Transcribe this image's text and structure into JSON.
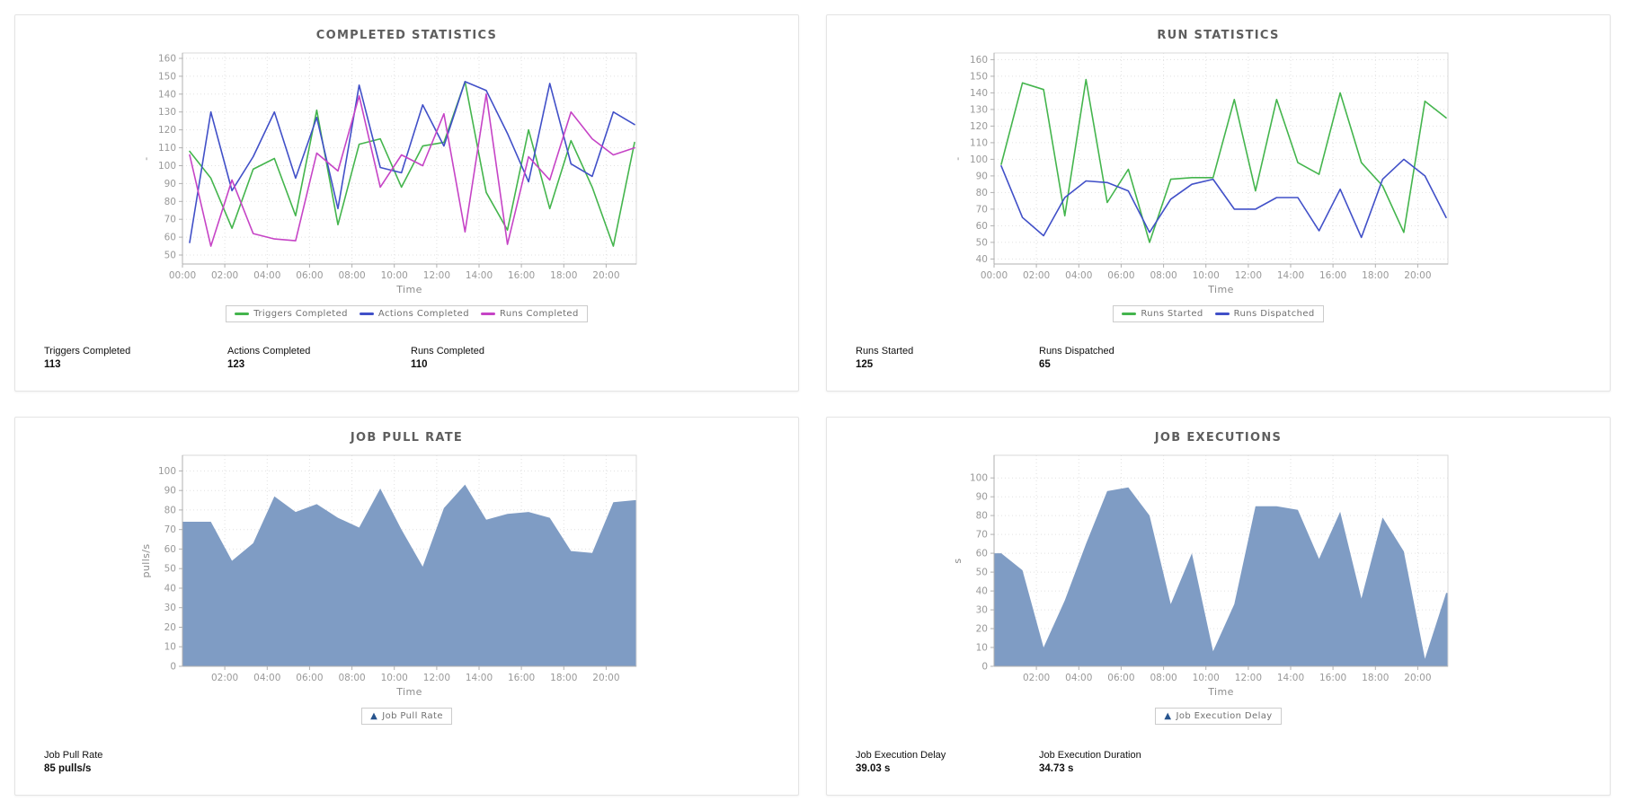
{
  "colors": {
    "green": "#44b54d",
    "blue": "#4150c8",
    "magenta": "#c644c6",
    "area_fill": "#7f9cc4",
    "legend_marker": "#27548d",
    "grid": "#e1e1e1",
    "axis": "#b0b0b0",
    "plot_border": "#d9d9d9"
  },
  "panels": [
    {
      "title": "COMPLETED STATISTICS",
      "stats": [
        {
          "label": "Triggers Completed",
          "value": "113"
        },
        {
          "label": "Actions Completed",
          "value": "123"
        },
        {
          "label": "Runs Completed",
          "value": "110"
        }
      ]
    },
    {
      "title": "RUN STATISTICS",
      "stats": [
        {
          "label": "Runs Started",
          "value": "125"
        },
        {
          "label": "Runs Dispatched",
          "value": "65"
        }
      ]
    },
    {
      "title": "JOB PULL RATE",
      "stats": [
        {
          "label": "Job Pull Rate",
          "value": "85 pulls/s"
        }
      ]
    },
    {
      "title": "JOB EXECUTIONS",
      "stats": [
        {
          "label": "Job Execution Delay",
          "value": "39.03 s"
        },
        {
          "label": "Job Execution Duration",
          "value": "34.73 s"
        }
      ]
    }
  ],
  "chart_data": [
    {
      "type": "line",
      "title": "COMPLETED STATISTICS",
      "xlabel": "Time",
      "ylabel": "-",
      "ylim": [
        45,
        163
      ],
      "yticks": [
        50,
        60,
        70,
        80,
        90,
        100,
        110,
        120,
        130,
        140,
        150,
        160
      ],
      "x": [
        "00:00",
        "01:00",
        "02:00",
        "03:00",
        "04:00",
        "05:00",
        "06:00",
        "07:00",
        "08:00",
        "09:00",
        "10:00",
        "11:00",
        "12:00",
        "13:00",
        "14:00",
        "15:00",
        "16:00",
        "17:00",
        "18:00",
        "19:00",
        "20:00",
        "21:00"
      ],
      "x_tick_hours": [
        0,
        2,
        4,
        6,
        8,
        10,
        12,
        14,
        16,
        18,
        20
      ],
      "x_tick_labels": [
        "00:00",
        "02:00",
        "04:00",
        "06:00",
        "08:00",
        "10:00",
        "12:00",
        "14:00",
        "16:00",
        "18:00",
        "20:00"
      ],
      "grid": true,
      "legend_position": "bottom",
      "series": [
        {
          "name": "Triggers Completed",
          "color": "#44b54d",
          "values": [
            108,
            93,
            65,
            98,
            104,
            72,
            131,
            67,
            112,
            115,
            88,
            111,
            113,
            147,
            85,
            64,
            120,
            76,
            114,
            88,
            55,
            113
          ]
        },
        {
          "name": "Actions Completed",
          "color": "#4150c8",
          "values": [
            57,
            130,
            86,
            105,
            130,
            93,
            127,
            76,
            145,
            99,
            96,
            134,
            111,
            147,
            142,
            118,
            91,
            146,
            101,
            94,
            130,
            123
          ]
        },
        {
          "name": "Runs Completed",
          "color": "#c644c6",
          "values": [
            106,
            55,
            92,
            62,
            59,
            58,
            107,
            97,
            139,
            88,
            106,
            100,
            129,
            63,
            140,
            56,
            105,
            92,
            130,
            115,
            106,
            110
          ]
        }
      ]
    },
    {
      "type": "line",
      "title": "RUN STATISTICS",
      "xlabel": "Time",
      "ylabel": "-",
      "ylim": [
        37,
        164
      ],
      "yticks": [
        40,
        50,
        60,
        70,
        80,
        90,
        100,
        110,
        120,
        130,
        140,
        150,
        160
      ],
      "x": [
        "00:00",
        "01:00",
        "02:00",
        "03:00",
        "04:00",
        "05:00",
        "06:00",
        "07:00",
        "08:00",
        "09:00",
        "10:00",
        "11:00",
        "12:00",
        "13:00",
        "14:00",
        "15:00",
        "16:00",
        "17:00",
        "18:00",
        "19:00",
        "20:00",
        "21:00"
      ],
      "x_tick_hours": [
        0,
        2,
        4,
        6,
        8,
        10,
        12,
        14,
        16,
        18,
        20
      ],
      "x_tick_labels": [
        "00:00",
        "02:00",
        "04:00",
        "06:00",
        "08:00",
        "10:00",
        "12:00",
        "14:00",
        "16:00",
        "18:00",
        "20:00"
      ],
      "grid": true,
      "legend_position": "bottom",
      "series": [
        {
          "name": "Runs Started",
          "color": "#44b54d",
          "values": [
            97,
            146,
            142,
            66,
            148,
            74,
            94,
            50,
            88,
            89,
            89,
            136,
            81,
            136,
            98,
            91,
            140,
            98,
            84,
            56,
            135,
            125
          ]
        },
        {
          "name": "Runs Dispatched",
          "color": "#4150c8",
          "values": [
            96,
            65,
            54,
            77,
            87,
            86,
            81,
            56,
            76,
            85,
            88,
            70,
            70,
            77,
            77,
            57,
            82,
            53,
            88,
            100,
            90,
            65
          ]
        }
      ]
    },
    {
      "type": "area",
      "title": "JOB PULL RATE",
      "xlabel": "Time",
      "ylabel": "pulls/s",
      "ylim": [
        0,
        108
      ],
      "yticks": [
        0,
        10,
        20,
        30,
        40,
        50,
        60,
        70,
        80,
        90,
        100
      ],
      "x": [
        "00:00",
        "01:00",
        "02:00",
        "03:00",
        "04:00",
        "05:00",
        "06:00",
        "07:00",
        "08:00",
        "09:00",
        "10:00",
        "11:00",
        "12:00",
        "13:00",
        "14:00",
        "15:00",
        "16:00",
        "17:00",
        "18:00",
        "19:00",
        "20:00",
        "21:00"
      ],
      "x_tick_hours": [
        2,
        4,
        6,
        8,
        10,
        12,
        14,
        16,
        18,
        20
      ],
      "x_tick_labels": [
        "02:00",
        "04:00",
        "06:00",
        "08:00",
        "10:00",
        "12:00",
        "14:00",
        "16:00",
        "18:00",
        "20:00"
      ],
      "grid": true,
      "legend_position": "bottom",
      "series": [
        {
          "name": "Job Pull Rate",
          "color": "#7f9cc4",
          "values": [
            74,
            74,
            54,
            63,
            87,
            79,
            83,
            76,
            71,
            91,
            70,
            51,
            81,
            93,
            75,
            78,
            79,
            76,
            59,
            58,
            84,
            85
          ]
        }
      ]
    },
    {
      "type": "area",
      "title": "JOB EXECUTIONS",
      "xlabel": "Time",
      "ylabel": "s",
      "ylim": [
        0,
        112
      ],
      "yticks": [
        0,
        10,
        20,
        30,
        40,
        50,
        60,
        70,
        80,
        90,
        100
      ],
      "x": [
        "00:00",
        "01:00",
        "02:00",
        "03:00",
        "04:00",
        "05:00",
        "06:00",
        "07:00",
        "08:00",
        "09:00",
        "10:00",
        "11:00",
        "12:00",
        "13:00",
        "14:00",
        "15:00",
        "16:00",
        "17:00",
        "18:00",
        "19:00",
        "20:00",
        "21:00"
      ],
      "x_tick_hours": [
        2,
        4,
        6,
        8,
        10,
        12,
        14,
        16,
        18,
        20
      ],
      "x_tick_labels": [
        "02:00",
        "04:00",
        "06:00",
        "08:00",
        "10:00",
        "12:00",
        "14:00",
        "16:00",
        "18:00",
        "20:00"
      ],
      "grid": true,
      "legend_position": "bottom",
      "series": [
        {
          "name": "Job Execution Delay",
          "color": "#7f9cc4",
          "values": [
            60,
            51,
            10,
            35,
            65,
            93,
            95,
            80,
            33,
            60,
            8,
            33,
            85,
            85,
            83,
            57,
            82,
            36,
            79,
            61,
            4,
            39
          ]
        }
      ]
    }
  ]
}
